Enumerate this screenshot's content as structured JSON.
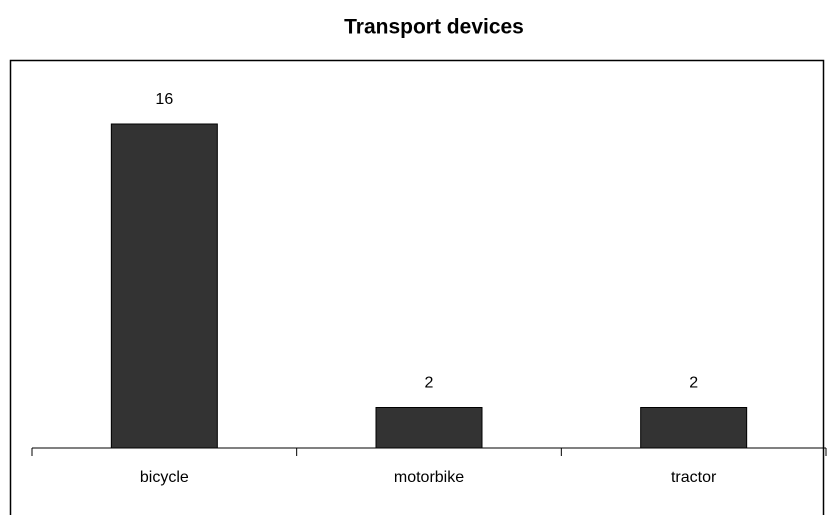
{
  "chart_data": {
    "type": "bar",
    "title": "Transport devices",
    "categories": [
      "bicycle",
      "motorbike",
      "tractor"
    ],
    "values": [
      16,
      2,
      2
    ],
    "color": "#333333",
    "ylim": [
      0,
      18
    ],
    "grid": false
  }
}
